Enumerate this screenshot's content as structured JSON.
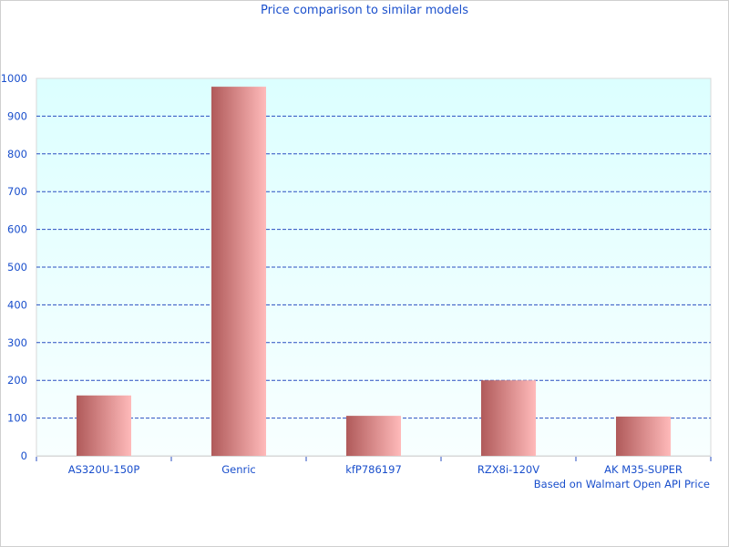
{
  "chart_data": {
    "type": "bar",
    "title": "Price comparison to similar models",
    "credit": "Based on Walmart Open API Price",
    "categories": [
      "AS320U-150P",
      "Genric",
      "kfP786197",
      "RZX8i-120V",
      "AK M35-SUPER"
    ],
    "values": [
      160,
      978,
      106,
      200,
      104
    ],
    "ylim": [
      0,
      1000
    ],
    "yticks": [
      0,
      100,
      200,
      300,
      400,
      500,
      600,
      700,
      800,
      900,
      1000
    ],
    "grid": true,
    "colors": {
      "bar_dark": "#b05a5a",
      "bar_light": "#ffbaba",
      "text": "#1a4fcc",
      "grid": "#2a4fc0",
      "plot_bg_top": "#dcffff",
      "plot_bg_bottom": "#f8ffff"
    }
  }
}
